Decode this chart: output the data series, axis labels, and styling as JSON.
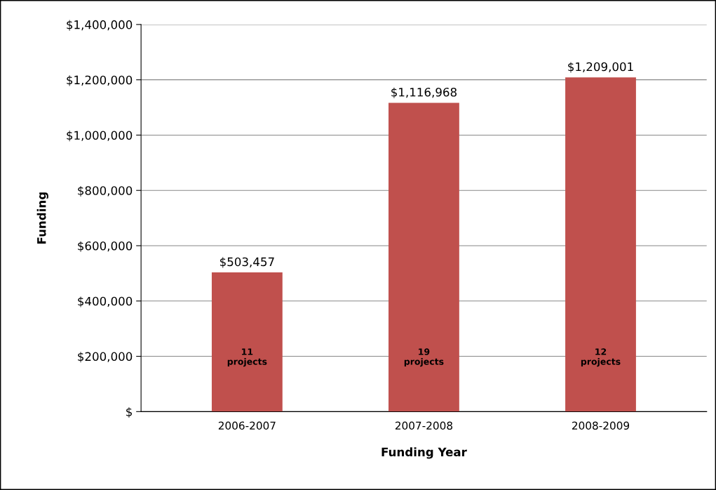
{
  "chart_data": {
    "type": "bar",
    "xlabel": "Funding Year",
    "ylabel": "Funding",
    "categories": [
      "2006-2007",
      "2007-2008",
      "2008-2009"
    ],
    "values": [
      503457,
      1116968,
      1209001
    ],
    "color": "#c0504d",
    "value_labels": [
      "$503,457",
      "$1,116,968",
      "$1,209,001"
    ],
    "ylim": [
      0,
      1400000
    ],
    "yticks": [
      {
        "value": 0,
        "label": "$"
      },
      {
        "value": 200000,
        "label": "$200,000"
      },
      {
        "value": 400000,
        "label": "$400,000"
      },
      {
        "value": 600000,
        "label": "$600,000"
      },
      {
        "value": 800000,
        "label": "$800,000"
      },
      {
        "value": 1000000,
        "label": "$1,000,000"
      },
      {
        "value": 1200000,
        "label": "$1,200,000"
      },
      {
        "value": 1400000,
        "label": "$1,400,000"
      }
    ],
    "grid": "y",
    "annotations": [
      "11\nprojects",
      "19\nprojects",
      "12\nprojects"
    ]
  }
}
